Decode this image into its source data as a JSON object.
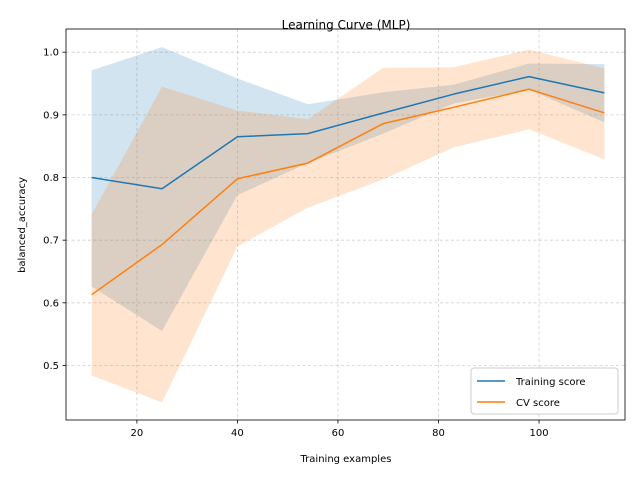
{
  "chart_data": {
    "type": "line",
    "title": "Learning Curve (MLP)",
    "xlabel": "Training examples",
    "ylabel": "balanced_accuracy",
    "xlim": [
      5.9,
      117.1
    ],
    "ylim": [
      0.413,
      1.037
    ],
    "x_ticks": [
      20,
      40,
      60,
      80,
      100
    ],
    "y_ticks": [
      0.5,
      0.6,
      0.7,
      0.8,
      0.9,
      1.0
    ],
    "grid": true,
    "legend_position": "lower-right",
    "x": [
      11,
      25,
      40,
      54,
      69,
      83,
      98,
      113
    ],
    "series": [
      {
        "name": "Training score",
        "color": "#1f77b4",
        "values": [
          0.8,
          0.782,
          0.865,
          0.87,
          0.903,
          0.933,
          0.961,
          0.935
        ],
        "upper": [
          0.971,
          1.008,
          0.958,
          0.917,
          0.936,
          0.948,
          0.982,
          0.981
        ],
        "lower": [
          0.626,
          0.555,
          0.772,
          0.823,
          0.87,
          0.918,
          0.94,
          0.888
        ]
      },
      {
        "name": "CV score",
        "color": "#ff7f0e",
        "values": [
          0.613,
          0.693,
          0.798,
          0.823,
          0.886,
          0.912,
          0.941,
          0.903
        ],
        "upper": [
          0.741,
          0.945,
          0.907,
          0.893,
          0.975,
          0.976,
          1.004,
          0.974
        ],
        "lower": [
          0.484,
          0.441,
          0.69,
          0.752,
          0.797,
          0.848,
          0.877,
          0.829
        ]
      }
    ]
  }
}
